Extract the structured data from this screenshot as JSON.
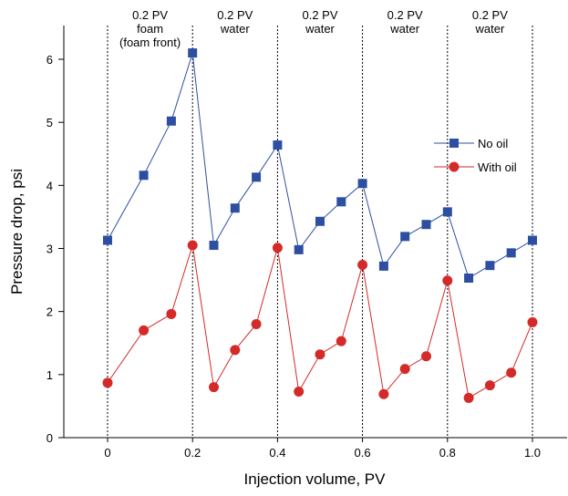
{
  "chart_data": {
    "type": "line",
    "xlabel": "Injection volume, PV",
    "ylabel": "Pressure drop, psi",
    "xlim": [
      -0.1,
      1.08
    ],
    "ylim": [
      0,
      6.5
    ],
    "x_ticks": [
      0,
      0.2,
      0.4,
      0.6,
      0.8,
      1.0
    ],
    "x_tick_labels": [
      "0",
      "0.2",
      "0.4",
      "0.6",
      "0.8",
      "1.0"
    ],
    "y_ticks": [
      0,
      1,
      2,
      3,
      4,
      5,
      6
    ],
    "y_tick_labels": [
      "0",
      "1",
      "2",
      "3",
      "4",
      "5",
      "6"
    ],
    "grid": false,
    "legend_position": "right",
    "segment_boundaries": [
      0,
      0.2,
      0.4,
      0.6,
      0.8,
      1.0
    ],
    "annotations": [
      {
        "x": 0.1,
        "lines": [
          "0.2 PV",
          "foam",
          "(foam front)"
        ]
      },
      {
        "x": 0.3,
        "lines": [
          "0.2 PV",
          "water"
        ]
      },
      {
        "x": 0.5,
        "lines": [
          "0.2 PV",
          "water"
        ]
      },
      {
        "x": 0.7,
        "lines": [
          "0.2 PV",
          "water"
        ]
      },
      {
        "x": 0.9,
        "lines": [
          "0.2 PV",
          "water"
        ]
      }
    ],
    "series": [
      {
        "name": "No oil",
        "color": "#2d4fa1",
        "marker": "square",
        "x": [
          0,
          0.085,
          0.15,
          0.2,
          0.25,
          0.3,
          0.35,
          0.4,
          0.45,
          0.5,
          0.55,
          0.6,
          0.65,
          0.7,
          0.75,
          0.8,
          0.85,
          0.9,
          0.95,
          1.0
        ],
        "y": [
          3.13,
          4.16,
          5.02,
          6.1,
          3.05,
          3.64,
          4.13,
          4.64,
          2.98,
          3.43,
          3.74,
          4.03,
          2.72,
          3.19,
          3.38,
          3.58,
          2.53,
          2.73,
          2.93,
          3.13
        ]
      },
      {
        "name": "With oil",
        "color": "#d42a2a",
        "marker": "circle",
        "x": [
          0,
          0.085,
          0.15,
          0.2,
          0.25,
          0.3,
          0.35,
          0.4,
          0.45,
          0.5,
          0.55,
          0.6,
          0.65,
          0.7,
          0.75,
          0.8,
          0.85,
          0.9,
          0.95,
          1.0
        ],
        "y": [
          0.87,
          1.7,
          1.96,
          3.05,
          0.8,
          1.39,
          1.8,
          3.01,
          0.73,
          1.32,
          1.53,
          2.74,
          0.69,
          1.09,
          1.29,
          2.49,
          0.63,
          0.83,
          1.03,
          1.83
        ]
      }
    ]
  }
}
